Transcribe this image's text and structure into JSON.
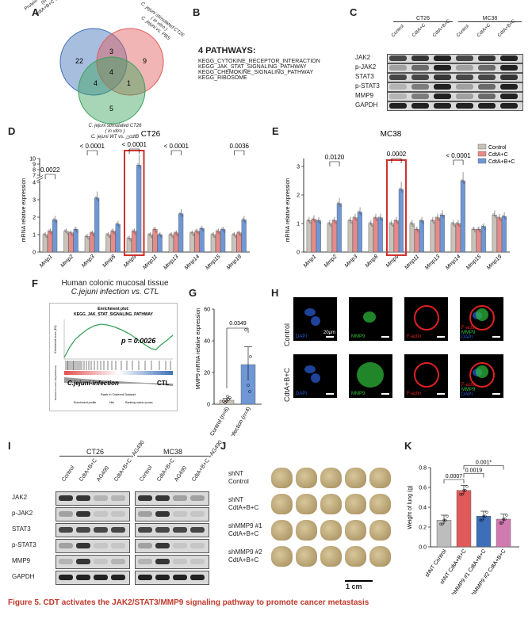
{
  "panels": {
    "A": "A",
    "B": "B",
    "C": "C",
    "D": "D",
    "E": "E",
    "F": "F",
    "G": "G",
    "H": "H",
    "I": "I",
    "J": "J",
    "K": "K"
  },
  "venn": {
    "set1": "Protein stimulated CT26 (in vitro) CdtA+B+C vs. CTL",
    "set1_lines": [
      "Protein stimulated CT26",
      "(in vitro)",
      "CdtA+B+C vs. CTL"
    ],
    "set2_lines": [
      "C. jejuni stimulated CT26",
      "( in vitro )",
      "C. jejuni vs. PBS"
    ],
    "set3_lines": [
      "C. jejuni stimulated CT26",
      "( in vitro )",
      "C. jejuni WT vs. △cdtB"
    ],
    "counts": {
      "only1": "22",
      "only2": "9",
      "only3": "5",
      "s12": "3",
      "s13": "4",
      "s23": "1",
      "s123": "4"
    },
    "colors": {
      "set1": "#3d6fb8",
      "set2": "#e05a5a",
      "set3": "#3aa35c"
    }
  },
  "pathways": {
    "title": "4 PATHWAYS:",
    "items": [
      "KEGG_CYTOKINE_RECEPTOR_INTERACTION",
      "KEGG_JAK_STAT_SIGNALING_PATHWAY",
      "KEGG_CHEMOKINE_SIGNALING_PATHWAY",
      "KEGG_RIBOSOME"
    ]
  },
  "blotC": {
    "groups": [
      "CT26",
      "MC38"
    ],
    "lanes": [
      "Control",
      "CdtA+C",
      "CdtA+B+C",
      "Control",
      "CdtA+C",
      "CdtA+B+C"
    ],
    "rows": [
      "JAK2",
      "p-JAK2",
      "STAT3",
      "p-STAT3",
      "MMP9",
      "GAPDH"
    ]
  },
  "chart_data": [
    {
      "type": "bar",
      "title": "CT26",
      "ylabel": "mRNA relative expression",
      "categories": [
        "Mmp1",
        "Mmp2",
        "Mmp3",
        "Mmp8",
        "Mmp9",
        "Mmp11",
        "Mmp13",
        "Mmp14",
        "Mmp15",
        "Mmp19"
      ],
      "series": [
        {
          "name": "Control",
          "values": [
            1.0,
            1.2,
            0.9,
            1.0,
            0.8,
            1.0,
            1.0,
            1.1,
            1.0,
            1.0
          ]
        },
        {
          "name": "CdtA+C",
          "values": [
            1.2,
            1.1,
            1.1,
            1.2,
            1.2,
            1.3,
            1.1,
            1.2,
            1.2,
            1.1
          ]
        },
        {
          "name": "CdtA+B+C",
          "values": [
            1.85,
            1.3,
            3.1,
            1.6,
            8.8,
            1.0,
            2.2,
            1.35,
            1.3,
            1.85
          ]
        }
      ],
      "yticks": [
        "0",
        "1",
        "2",
        "3",
        "4",
        "7",
        "8",
        "9",
        "10"
      ],
      "broken_axis": true,
      "annotations": [
        {
          "pair": "Mmp1",
          "text": "0.0022"
        },
        {
          "pair": "Mmp3",
          "text": "< 0.0001"
        },
        {
          "pair": "Mmp9",
          "text": "< 0.0001"
        },
        {
          "pair": "Mmp13",
          "text": "< 0.0001"
        },
        {
          "pair": "Mmp19",
          "text": "0.0036"
        }
      ],
      "highlight": "Mmp9"
    },
    {
      "type": "bar",
      "title": "MC38",
      "ylabel": "mRNA relative expression",
      "categories": [
        "Mmp1",
        "Mmp2",
        "Mmp3",
        "Mmp8",
        "Mmp9",
        "Mmp11",
        "Mmp13",
        "Mmp14",
        "Mmp15",
        "Mmp19"
      ],
      "series": [
        {
          "name": "Control",
          "values": [
            1.1,
            1.0,
            1.1,
            1.0,
            1.0,
            1.0,
            1.1,
            1.0,
            0.8,
            1.3
          ]
        },
        {
          "name": "CdtA+C",
          "values": [
            1.15,
            1.1,
            1.2,
            1.2,
            1.1,
            0.8,
            1.2,
            1.0,
            0.8,
            1.2
          ]
        },
        {
          "name": "CdtA+B+C",
          "values": [
            1.1,
            1.7,
            1.4,
            1.2,
            2.2,
            1.1,
            1.3,
            2.5,
            0.9,
            1.25
          ]
        }
      ],
      "ylim": [
        0,
        3
      ],
      "yticks": [
        "0",
        "1",
        "2",
        "3"
      ],
      "annotations": [
        {
          "pair": "Mmp2",
          "text": "0.0120"
        },
        {
          "pair": "Mmp9",
          "text": "0.0002"
        },
        {
          "pair": "Mmp14",
          "text": "< 0.0001"
        }
      ],
      "highlight": "Mmp9",
      "legend": [
        "Control",
        "CdtA+C",
        "CdtA+B+C"
      ]
    },
    {
      "type": "bar",
      "ylabel": "MMP9 mRNA relative expression",
      "categories": [
        "Control (n=6)",
        "C.jejuni-infection (n=4)"
      ],
      "values": [
        2.5,
        25
      ],
      "ylim": [
        0,
        60
      ],
      "yticks": [
        "0",
        "20",
        "40",
        "60"
      ],
      "annotation": "0.0349"
    },
    {
      "type": "bar",
      "ylabel": "Weight of lung (g)",
      "categories": [
        "shNT Control",
        "shNT CdtA+B+C",
        "shMMP9 #1 CdtA+B+C",
        "shMMP9 #2 CdtA+B+C"
      ],
      "values": [
        0.27,
        0.57,
        0.31,
        0.28
      ],
      "ylim": [
        0,
        0.8
      ],
      "yticks": [
        "0.0",
        "0.2",
        "0.4",
        "0.6",
        "0.8"
      ],
      "annotations": [
        {
          "pair": "1-2",
          "text": "0.0007"
        },
        {
          "pair": "2-3",
          "text": "0.0019"
        },
        {
          "pair": "2-4",
          "text": "0.001*"
        }
      ],
      "colors": [
        "#bdbdbd",
        "#e05a5a",
        "#3d6fb8",
        "#d07ab0"
      ]
    }
  ],
  "gsea": {
    "title_line1": "Human colonic mucosal tissue",
    "title_line2": "C.jejuni infection vs. CTL",
    "plot_title_1": "Enrichment plot:",
    "plot_title_2": "KEGG_JAK_STAT_SIGNALING_PATHWAY",
    "pvalue": "p = 0.0026",
    "left_label": "C.jejuni-infection",
    "right_label": "CTL",
    "ylabel_top": "Enrichment score (ES)",
    "ylabel_bottom": "Ranked list metric (Signal2Noise)",
    "xlabel": "Rank in Ordered Dataset",
    "legend": [
      "Enrichment profile",
      "Hits",
      "Ranking metric scores"
    ]
  },
  "microscopy": {
    "rows": [
      "Control",
      "CdtA+B+C"
    ],
    "channels": [
      "DAPI",
      "MMP9",
      "F-actin"
    ],
    "merge_lines": [
      "F-actin",
      "MMP9",
      "DAPI"
    ],
    "scalebar": "20μm"
  },
  "blotI": {
    "groups": [
      "CT26",
      "MC38"
    ],
    "lanes": [
      "Control",
      "CdtA+B+C",
      "AG490",
      "CdtA+B+C +AG490",
      "Control",
      "CdtA+B+C",
      "AG490",
      "CdtA+B+C +AG490"
    ],
    "rows": [
      "JAK2",
      "p-JAK2",
      "STAT3",
      "p-STAT3",
      "MMP9",
      "GAPDH"
    ]
  },
  "lungs": {
    "rows": [
      [
        "shNT",
        "Control"
      ],
      [
        "shNT",
        "CdtA+B+C"
      ],
      [
        "shMMP9 #1",
        "CdtA+B+C"
      ],
      [
        "shMMP9 #2",
        "CdtA+B+C"
      ]
    ],
    "scale": "1 cm"
  },
  "caption": "Figure 5.  CDT activates the JAK2/STAT3/MMP9 signaling pathway to promote cancer metastasis"
}
